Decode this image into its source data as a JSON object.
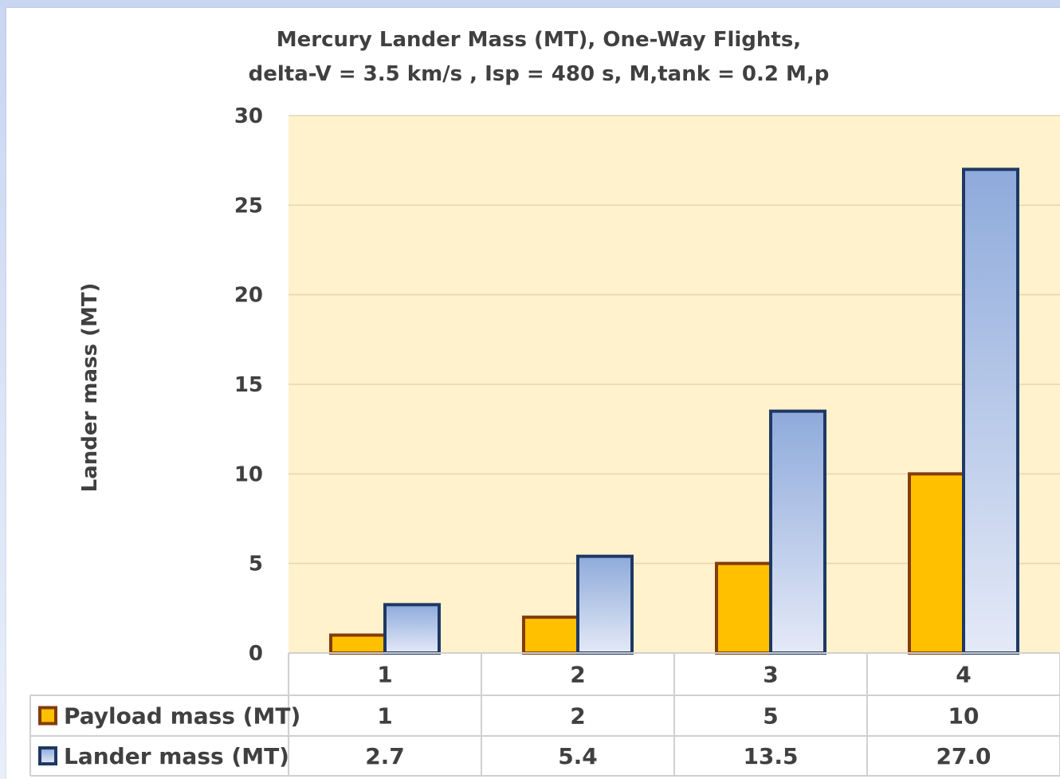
{
  "chart_data": {
    "type": "bar",
    "title": "Mercury Lander Mass (MT), One-Way Flights,",
    "subtitle": "delta-V = 3.5 km/s , Isp = 480 s, M,tank = 0.2 M,p",
    "xlabel": "",
    "ylabel": "Lander mass (MT)",
    "ylim": [
      0,
      30
    ],
    "yticks": [
      0,
      5,
      10,
      15,
      20,
      25,
      30
    ],
    "grid": true,
    "legend": "data-table",
    "categories": [
      "1",
      "2",
      "3",
      "4"
    ],
    "series": [
      {
        "name": "Payload mass (MT)",
        "values": [
          1,
          2,
          5,
          10
        ],
        "labels": [
          "1",
          "2",
          "5",
          "10"
        ],
        "fill": "#ffc000",
        "stroke": "#843c0c"
      },
      {
        "name": "Lander mass (MT)",
        "values": [
          2.7,
          5.4,
          13.5,
          27.0
        ],
        "labels": [
          "2.7",
          "5.4",
          "13.5",
          "27.0"
        ],
        "fill_top": "#8eaadb",
        "fill_bottom": "#e4e9f7",
        "stroke": "#1f3864"
      }
    ],
    "plot_background": "#fff2cc"
  }
}
